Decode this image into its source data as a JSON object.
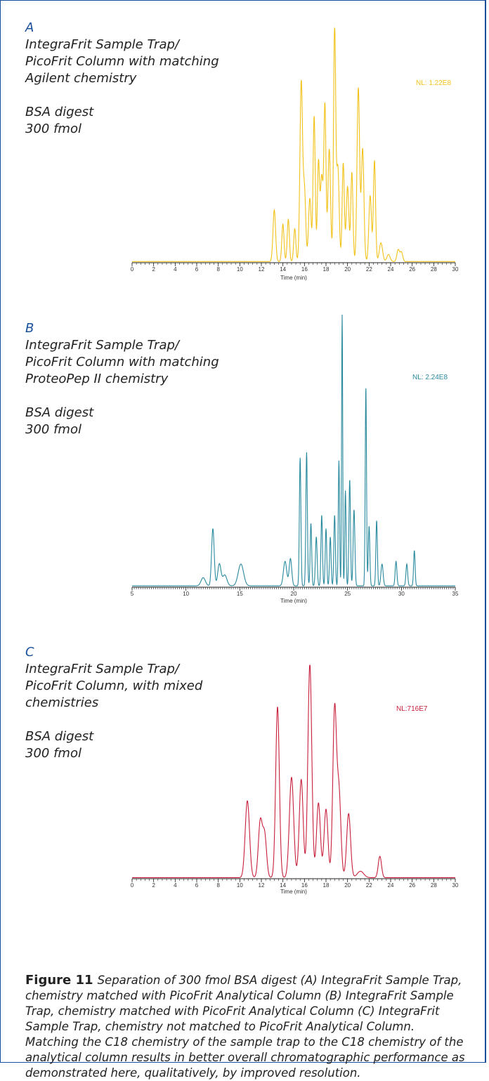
{
  "panels": [
    {
      "letter": "A",
      "description_lines": [
        "IntegraFrit Sample Trap/",
        "PicoFrit Column with matching",
        "Agilent chemistry"
      ],
      "sample_lines": [
        "BSA digest",
        "300 fmol"
      ]
    },
    {
      "letter": "B",
      "description_lines": [
        "IntegraFrit Sample Trap/",
        "PicoFrit Column with matching",
        "ProteoPep II chemistry"
      ],
      "sample_lines": [
        "BSA digest",
        "300 fmol"
      ]
    },
    {
      "letter": "C",
      "description_lines": [
        "IntegraFrit Sample Trap/",
        "PicoFrit Column, with mixed",
        "chemistries"
      ],
      "sample_lines": [
        "BSA digest",
        "300 fmol"
      ]
    }
  ],
  "chart_data": [
    {
      "type": "line",
      "xlabel": "Time (min)",
      "xlim": [
        0,
        30
      ],
      "x_ticks": [
        0,
        2,
        4,
        6,
        8,
        10,
        12,
        14,
        16,
        18,
        20,
        22,
        24,
        26,
        28,
        30
      ],
      "annotation": "NL: 1.22E8",
      "color": "#f2c21a",
      "ylim": [
        0,
        100
      ],
      "baseline": 0.5,
      "peaks": [
        [
          13.2,
          22,
          0.12
        ],
        [
          14.0,
          16,
          0.1
        ],
        [
          14.5,
          18,
          0.1
        ],
        [
          15.1,
          14,
          0.1
        ],
        [
          15.7,
          76,
          0.12
        ],
        [
          16.0,
          30,
          0.12
        ],
        [
          16.5,
          27,
          0.12
        ],
        [
          16.9,
          62,
          0.1
        ],
        [
          17.3,
          42,
          0.1
        ],
        [
          17.6,
          36,
          0.12
        ],
        [
          17.9,
          66,
          0.1
        ],
        [
          18.3,
          48,
          0.12
        ],
        [
          18.8,
          100,
          0.1
        ],
        [
          19.1,
          40,
          0.12
        ],
        [
          19.6,
          42,
          0.1
        ],
        [
          20.0,
          32,
          0.12
        ],
        [
          20.4,
          38,
          0.1
        ],
        [
          21.0,
          74,
          0.12
        ],
        [
          21.4,
          48,
          0.12
        ],
        [
          22.1,
          28,
          0.12
        ],
        [
          22.5,
          43,
          0.1
        ],
        [
          23.1,
          8,
          0.15
        ],
        [
          23.8,
          3,
          0.15
        ],
        [
          24.7,
          5,
          0.12
        ],
        [
          25.0,
          4,
          0.12
        ]
      ]
    },
    {
      "type": "line",
      "xlabel": "Time (min)",
      "xlim": [
        5,
        35
      ],
      "x_ticks": [
        5,
        10,
        15,
        20,
        25,
        30,
        35
      ],
      "annotation": "NL: 2.24E8",
      "color": "#2a8a9e",
      "ylim": [
        0,
        100
      ],
      "baseline": 0.5,
      "peaks": [
        [
          11.6,
          3,
          0.2
        ],
        [
          12.5,
          21,
          0.12
        ],
        [
          13.1,
          8,
          0.15
        ],
        [
          13.6,
          4,
          0.2
        ],
        [
          15.1,
          8,
          0.25
        ],
        [
          19.2,
          9,
          0.15
        ],
        [
          19.7,
          10,
          0.12
        ],
        [
          20.6,
          47,
          0.07
        ],
        [
          21.2,
          49,
          0.07
        ],
        [
          21.6,
          23,
          0.07
        ],
        [
          22.1,
          18,
          0.08
        ],
        [
          22.6,
          26,
          0.07
        ],
        [
          23.0,
          21,
          0.07
        ],
        [
          23.4,
          18,
          0.07
        ],
        [
          23.8,
          26,
          0.07
        ],
        [
          24.2,
          46,
          0.06
        ],
        [
          24.5,
          100,
          0.05
        ],
        [
          24.8,
          35,
          0.06
        ],
        [
          25.2,
          39,
          0.07
        ],
        [
          25.6,
          28,
          0.08
        ],
        [
          26.7,
          73,
          0.06
        ],
        [
          27.0,
          22,
          0.07
        ],
        [
          27.7,
          24,
          0.07
        ],
        [
          28.2,
          8,
          0.1
        ],
        [
          29.5,
          9,
          0.08
        ],
        [
          30.5,
          8,
          0.08
        ],
        [
          31.2,
          13,
          0.07
        ]
      ]
    },
    {
      "type": "line",
      "xlabel": "Time (min)",
      "xlim": [
        0,
        30
      ],
      "x_ticks": [
        0,
        2,
        4,
        6,
        8,
        10,
        12,
        14,
        16,
        18,
        20,
        22,
        24,
        26,
        28,
        30
      ],
      "annotation": "NL:716E7",
      "color": "#c8203c",
      "ylim": [
        0,
        100
      ],
      "baseline": 0.5,
      "peaks": [
        [
          10.7,
          36,
          0.2
        ],
        [
          11.9,
          26,
          0.18
        ],
        [
          12.3,
          20,
          0.18
        ],
        [
          13.5,
          80,
          0.17
        ],
        [
          14.8,
          47,
          0.2
        ],
        [
          15.7,
          46,
          0.18
        ],
        [
          16.5,
          100,
          0.18
        ],
        [
          17.3,
          35,
          0.18
        ],
        [
          18.0,
          32,
          0.18
        ],
        [
          18.8,
          78,
          0.17
        ],
        [
          19.2,
          40,
          0.18
        ],
        [
          20.1,
          30,
          0.18
        ],
        [
          21.2,
          3,
          0.3
        ],
        [
          23.0,
          10,
          0.15
        ]
      ]
    }
  ],
  "caption": {
    "label": "Figure 11",
    "text": "Separation of 300 fmol BSA digest (A) IntegraFrit Sample Trap, chemistry matched with PicoFrit Analytical Column (B) IntegraFrit Sample Trap, chemistry matched with PicoFrit Analytical Column (C) IntegraFrit Sample Trap, chemistry not matched to PicoFrit Analytical Column. Matching the C18 chemistry of the sample trap to the C18 chemistry of the analytical column results in better overall chromatographic performance as demonstrated here, qualitatively, by improved resolution."
  }
}
